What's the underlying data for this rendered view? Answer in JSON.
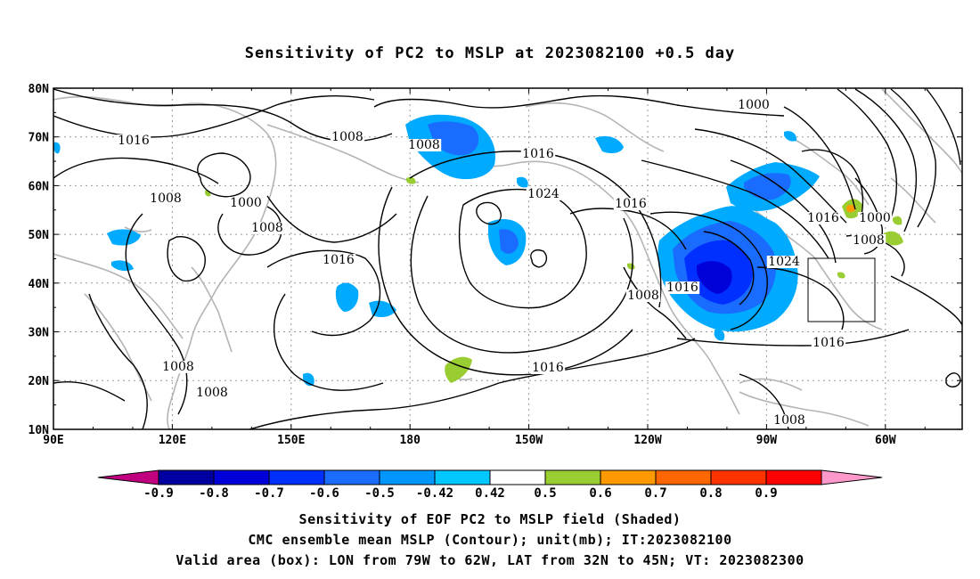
{
  "title": "Sensitivity of PC2 to MSLP at 2023082100 +0.5 day",
  "lat_labels": [
    "80N",
    "70N",
    "60N",
    "50N",
    "40N",
    "30N",
    "20N",
    "10N"
  ],
  "lon_labels": [
    "90E",
    "120E",
    "150E",
    "180",
    "150W",
    "120W",
    "90W",
    "60W"
  ],
  "colorbar": {
    "labels": [
      "-0.9",
      "-0.8",
      "-0.7",
      "-0.6",
      "-0.5",
      "-0.42",
      "0.42",
      "0.5",
      "0.6",
      "0.7",
      "0.8",
      "0.9"
    ],
    "colors": [
      "#c0007f",
      "#0000a0",
      "#0000d8",
      "#0030ff",
      "#1a6cff",
      "#0096ff",
      "#00c8ff",
      "#ffffff",
      "#9acd32",
      "#ff9900",
      "#ff6600",
      "#ff3300",
      "#ff0000",
      "#ff99cc"
    ]
  },
  "contour_labels": [
    "1016",
    "1008",
    "1008",
    "1008",
    "1000",
    "1008",
    "1016",
    "1016",
    "1024",
    "1016",
    "1008",
    "1016",
    "1024",
    "1000",
    "1016",
    "1000",
    "1008",
    "1016",
    "1008",
    "1008",
    "1016",
    "1008"
  ],
  "valid_area": {
    "lon_from": "79W",
    "lon_to": "62W",
    "lat_from": "32N",
    "lat_to": "45N"
  },
  "captions": [
    "Sensitivity of EOF PC2 to MSLP field (Shaded)",
    "CMC ensemble mean MSLP (Contour); unit(mb); IT:2023082100",
    "Valid area (box): LON from 79W to 62W, LAT from 32N to 45N; VT: 2023082300"
  ]
}
